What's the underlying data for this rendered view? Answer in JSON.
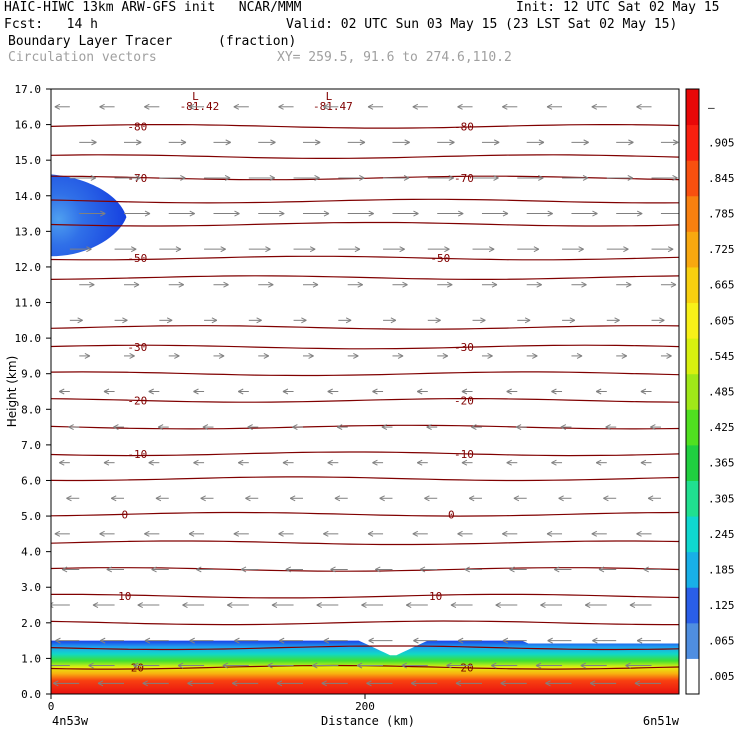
{
  "header": {
    "line1_left": "HAIC-HIWC 13km ARW-GFS init   NCAR/MMM",
    "line1_right": "Init: 12 UTC Sat 02 May 15",
    "line2_left": "Fcst:   14 h",
    "line2_right": "Valid: 02 UTC Sun 03 May 15 (23 LST Sat 02 May 15)",
    "line3_left": "Boundary Layer Tracer",
    "line3_mid": "(fraction)",
    "line4_left": "Circulation vectors",
    "line4_mid": "XY= 259.5, 91.6 to 274.6,110.2"
  },
  "chart_data": {
    "type": "heatmap",
    "title": "Boundary Layer Tracer",
    "units": "(fraction)",
    "xlabel": "Distance (km)",
    "ylabel": "Height (km)",
    "xlim": [
      0,
      400
    ],
    "ylim": [
      0,
      17
    ],
    "x_ticks": [
      0,
      200
    ],
    "y_ticks": [
      0.0,
      1.0,
      2.0,
      3.0,
      4.0,
      5.0,
      6.0,
      7.0,
      8.0,
      9.0,
      10.0,
      11.0,
      12.0,
      13.0,
      14.0,
      15.0,
      16.0,
      17.0
    ],
    "x_endpoint_labels": [
      "4n53w",
      "6n51w"
    ],
    "colorbar": {
      "levels": [
        ".005",
        ".065",
        ".125",
        ".185",
        ".245",
        ".305",
        ".365",
        ".425",
        ".485",
        ".545",
        ".605",
        ".665",
        ".725",
        ".785",
        ".845",
        ".905",
        "–"
      ],
      "colors": [
        "#ffffff",
        "#4f8ee0",
        "#2a5ee8",
        "#18b0e8",
        "#10d8d0",
        "#20e090",
        "#20d040",
        "#50e020",
        "#a0e818",
        "#d8f010",
        "#f8f018",
        "#f8d010",
        "#f8a810",
        "#f88010",
        "#f85010",
        "#f82010",
        "#e80808"
      ]
    },
    "isotherms": {
      "color": "#800000",
      "levels": [
        {
          "y": 15.95,
          "labels": [
            {
              "x": 55,
              "text": "-80"
            },
            {
              "x": 263,
              "text": "-80"
            }
          ]
        },
        {
          "y": 15.1,
          "labels": []
        },
        {
          "y": 14.5,
          "labels": [
            {
              "x": 55,
              "text": "-70"
            },
            {
              "x": 263,
              "text": "-70"
            }
          ]
        },
        {
          "y": 13.85,
          "labels": []
        },
        {
          "y": 13.2,
          "labels": []
        },
        {
          "y": 12.25,
          "labels": [
            {
              "x": 55,
              "text": "-50"
            },
            {
              "x": 248,
              "text": "-50"
            }
          ]
        },
        {
          "y": 11.7,
          "labels": []
        },
        {
          "y": 10.3,
          "labels": []
        },
        {
          "y": 9.75,
          "labels": [
            {
              "x": 55,
              "text": "-30"
            },
            {
              "x": 263,
              "text": "-30"
            }
          ]
        },
        {
          "y": 9.0,
          "labels": []
        },
        {
          "y": 8.25,
          "labels": [
            {
              "x": 55,
              "text": "-20"
            },
            {
              "x": 263,
              "text": "-20"
            }
          ]
        },
        {
          "y": 7.5,
          "labels": []
        },
        {
          "y": 6.75,
          "labels": [
            {
              "x": 55,
              "text": "-10"
            },
            {
              "x": 263,
              "text": "-10"
            }
          ]
        },
        {
          "y": 6.05,
          "labels": []
        },
        {
          "y": 5.05,
          "labels": [
            {
              "x": 47,
              "text": "0"
            },
            {
              "x": 255,
              "text": "0"
            }
          ]
        },
        {
          "y": 4.25,
          "labels": []
        },
        {
          "y": 3.5,
          "labels": []
        },
        {
          "y": 2.75,
          "labels": [
            {
              "x": 47,
              "text": "10"
            },
            {
              "x": 245,
              "text": "10"
            }
          ]
        },
        {
          "y": 2.0,
          "labels": []
        },
        {
          "y": 1.3,
          "labels": []
        },
        {
          "y": 0.75,
          "labels": [
            {
              "x": 55,
              "text": "20"
            },
            {
              "x": 265,
              "text": "20"
            }
          ]
        }
      ]
    },
    "minima": [
      {
        "x": 92,
        "y": 16.85,
        "mark": "L",
        "value": "-81.42"
      },
      {
        "x": 177,
        "y": 16.85,
        "mark": "L",
        "value": "-81.47"
      }
    ],
    "tracer_regions": [
      {
        "name": "upper plume",
        "x": [
          0,
          50
        ],
        "y": [
          12.3,
          14.6
        ],
        "peak_value": ".125"
      },
      {
        "name": "boundary layer",
        "x": [
          0,
          400
        ],
        "y": [
          0,
          1.5
        ],
        "peak_value": "–"
      }
    ],
    "vectors": {
      "color": "#808080",
      "description": "Circulation vectors",
      "layers": [
        {
          "y": 16.5,
          "u": -0.5
        },
        {
          "y": 15.5,
          "u": 0.6
        },
        {
          "y": 14.5,
          "u": 1.0
        },
        {
          "y": 13.5,
          "u": 1.0
        },
        {
          "y": 12.5,
          "u": 0.8
        },
        {
          "y": 11.5,
          "u": 0.5
        },
        {
          "y": 10.5,
          "u": 0.4
        },
        {
          "y": 9.5,
          "u": 0.3
        },
        {
          "y": 8.5,
          "u": -0.3
        },
        {
          "y": 7.5,
          "u": -0.3
        },
        {
          "y": 6.5,
          "u": -0.3
        },
        {
          "y": 5.5,
          "u": -0.4
        },
        {
          "y": 4.5,
          "u": -0.5
        },
        {
          "y": 3.5,
          "u": -0.6
        },
        {
          "y": 2.5,
          "u": -0.8
        },
        {
          "y": 1.5,
          "u": -0.9
        },
        {
          "y": 0.8,
          "u": -1.0
        },
        {
          "y": 0.3,
          "u": -1.0
        }
      ]
    }
  }
}
